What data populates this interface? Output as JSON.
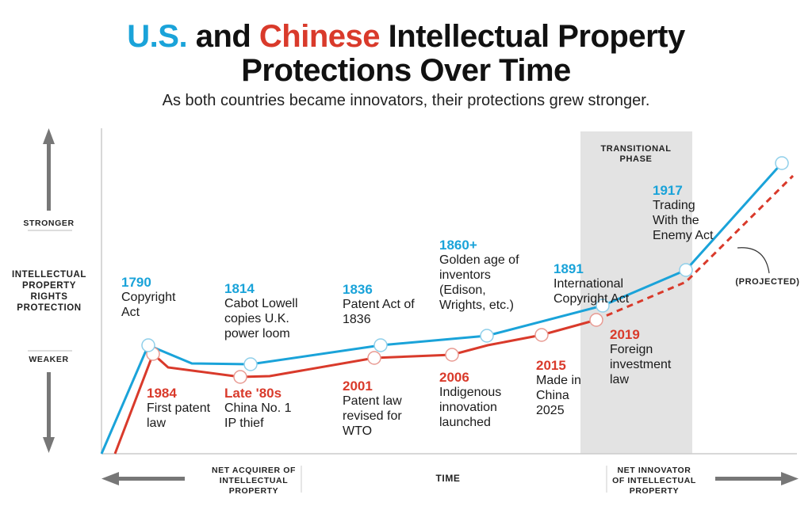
{
  "title": {
    "us": "U.S.",
    "and": " and ",
    "cn": "Chinese",
    "rest": " Intellectual Property",
    "line2": "Protections Over Time"
  },
  "subtitle": "As both countries became innovators, their protections grew stronger.",
  "colors": {
    "us": "#1aa3d9",
    "china": "#d93a2b",
    "band": "#e3e3e3"
  },
  "axis": {
    "y_label": "INTELLECTUAL PROPERTY RIGHTS PROTECTION",
    "stronger": "STRONGER",
    "weaker": "WEAKER",
    "x_label": "TIME",
    "left": "NET ACQUIRER OF INTELLECTUAL PROPERTY",
    "right": "NET INNOVATOR OF INTELLECTUAL PROPERTY"
  },
  "band_label": "TRANSITIONAL PHASE",
  "projected_label": "(PROJECTED)",
  "chart_data": {
    "type": "line",
    "series": [
      {
        "name": "U.S.",
        "events": [
          {
            "year": "1790",
            "text": "Copyright Act"
          },
          {
            "year": "1814",
            "text": "Cabot Lowell copies U.K. power loom"
          },
          {
            "year": "1836",
            "text": "Patent Act of 1836"
          },
          {
            "year": "1860+",
            "text": "Golden age of inventors (Edison, Wrights, etc.)"
          },
          {
            "year": "1891",
            "text": "International Copyright Act"
          },
          {
            "year": "1917",
            "text": "Trading With the Enemy Act"
          }
        ]
      },
      {
        "name": "China",
        "events": [
          {
            "year": "1984",
            "text": "First patent law"
          },
          {
            "year": "Late '80s",
            "text": "China No. 1 IP thief"
          },
          {
            "year": "2001",
            "text": "Patent law revised for WTO"
          },
          {
            "year": "2006",
            "text": "Indigenous innovation launched"
          },
          {
            "year": "2015",
            "text": "Made in China 2025"
          },
          {
            "year": "2019",
            "text": "Foreign investment law"
          }
        ]
      }
    ]
  }
}
